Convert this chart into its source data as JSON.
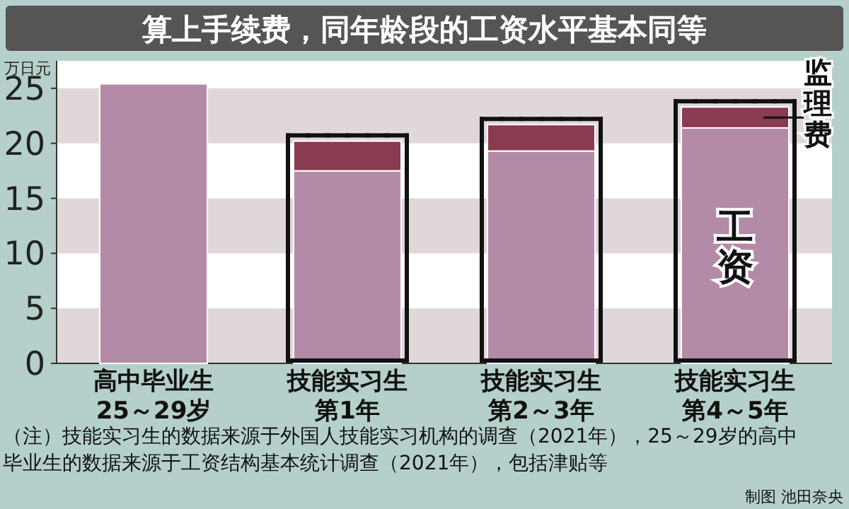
{
  "chart_data": {
    "type": "bar",
    "title": "算上手续费，同年龄段的工资水平基本同等",
    "ylabel": "万日元",
    "categories": [
      "高中毕业生25～29岁",
      "技能实习生第1年",
      "技能实习生第2～3年",
      "技能实习生第4～5年"
    ],
    "stacked": true,
    "series": [
      {
        "name": "工资",
        "color": "#b38ba6",
        "values": [
          25.4,
          17.5,
          19.3,
          21.4
        ]
      },
      {
        "name": "监理费",
        "color": "#8a3b52",
        "values": [
          null,
          2.7,
          2.4,
          1.9
        ]
      }
    ],
    "ylim": [
      0,
      27.5
    ],
    "yticks": [
      0,
      5,
      10,
      15,
      20,
      25
    ],
    "bands": [
      {
        "axis": "y",
        "from": 0,
        "to": 5,
        "color": "#e0d8d8"
      },
      {
        "axis": "y",
        "from": 10,
        "to": 15,
        "color": "#e0d8d8"
      },
      {
        "axis": "y",
        "from": 20,
        "to": 25,
        "color": "#e0d8d8"
      }
    ],
    "annotations": [
      "（注）技能实习生的数据来源于外国人技能实习机构的调查（2021年），25～29岁的高中毕业生的数据来源于工资结构基本统计调查（2021年），包括津贴等",
      "制图 池田奈央"
    ]
  }
}
